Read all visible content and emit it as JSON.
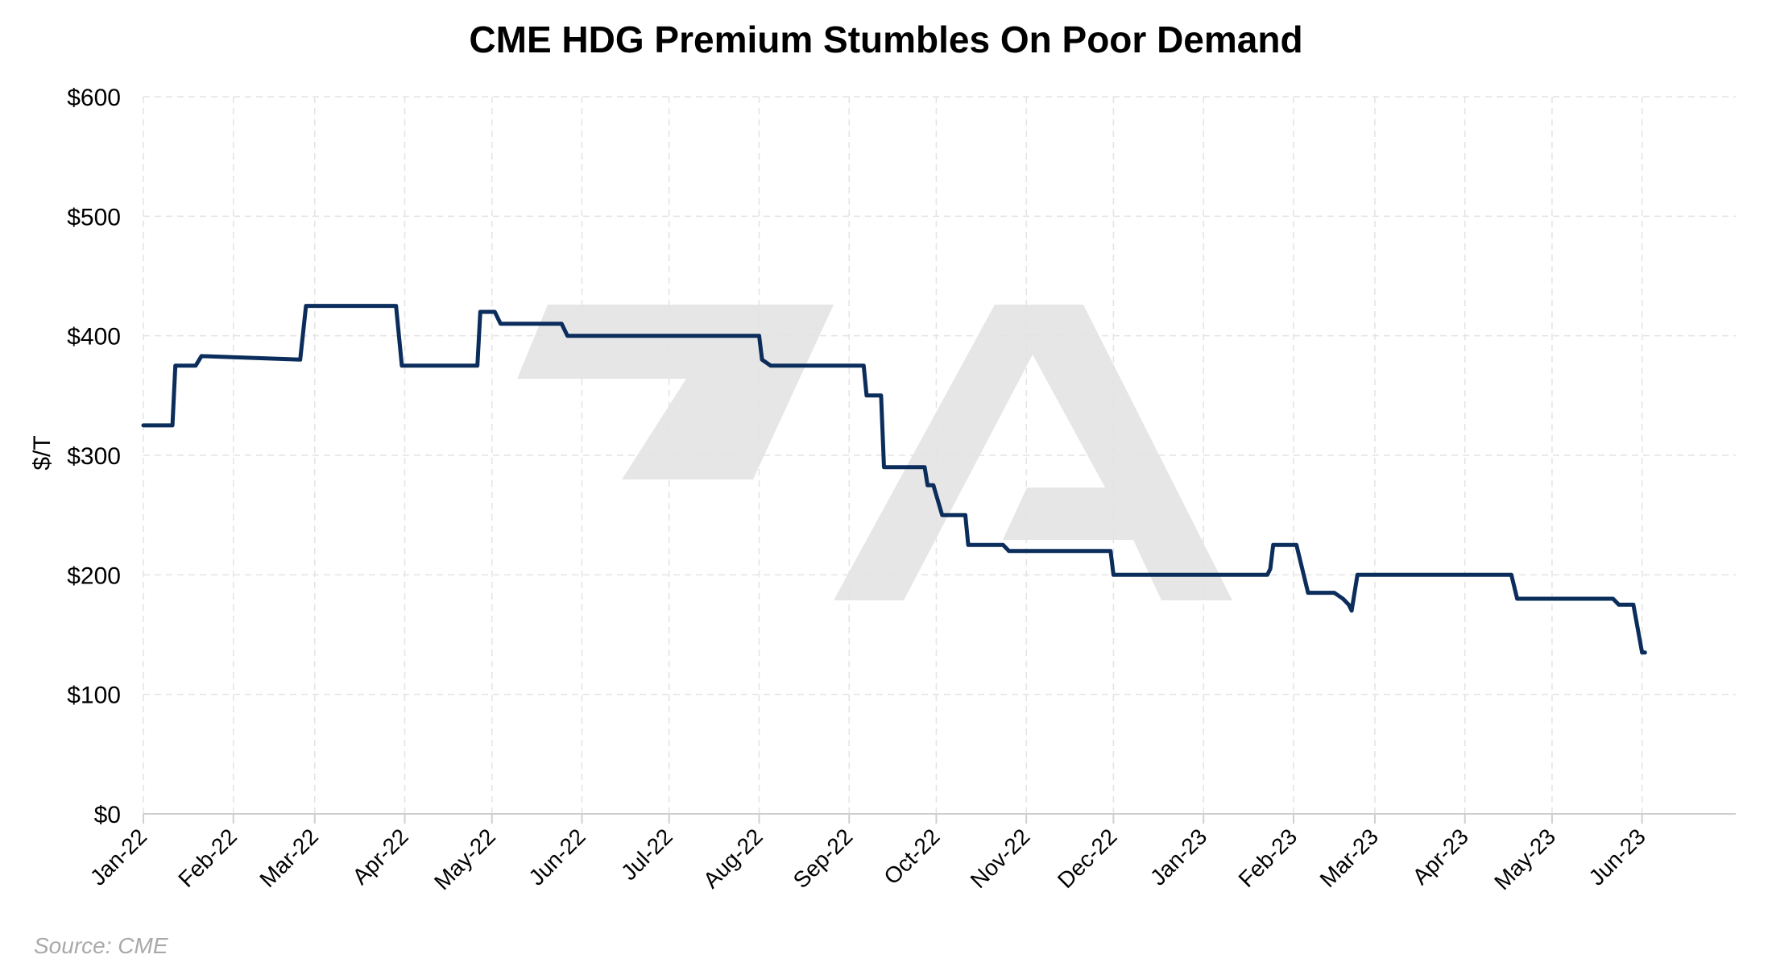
{
  "chart_data": {
    "type": "line",
    "title": "CME HDG Premium Stumbles On Poor Demand",
    "xlabel": "",
    "ylabel": "$/T",
    "ylim": [
      0,
      600
    ],
    "y_ticks": [
      0,
      100,
      200,
      300,
      400,
      500,
      600
    ],
    "y_tick_labels": [
      "$0",
      "$100",
      "$200",
      "$300",
      "$400",
      "$500",
      "$600"
    ],
    "x_range": [
      "2022-01-01",
      "2023-06-18"
    ],
    "x_ticks": [
      "2022-01-01",
      "2022-02-01",
      "2022-03-01",
      "2022-04-01",
      "2022-05-01",
      "2022-06-01",
      "2022-07-01",
      "2022-08-01",
      "2022-09-01",
      "2022-10-01",
      "2022-11-01",
      "2022-12-01",
      "2023-01-01",
      "2023-02-01",
      "2023-03-01",
      "2023-04-01",
      "2023-05-01",
      "2023-06-01"
    ],
    "x_tick_labels": [
      "Jan-22",
      "Feb-22",
      "Mar-22",
      "Apr-22",
      "May-22",
      "Jun-22",
      "Jul-22",
      "Aug-22",
      "Sep-22",
      "Oct-22",
      "Nov-22",
      "Dec-22",
      "Jan-23",
      "Feb-23",
      "Mar-23",
      "Apr-23",
      "May-23",
      "Jun-23"
    ],
    "grid": true,
    "legend": "none",
    "line_color": "#0b2d5b",
    "series": [
      {
        "x": [
          "2022-01-01",
          "2022-01-11",
          "2022-01-12",
          "2022-01-19",
          "2022-01-21",
          "2022-02-24",
          "2022-02-26",
          "2022-03-29",
          "2022-03-31",
          "2022-04-26",
          "2022-04-27",
          "2022-05-02",
          "2022-05-04",
          "2022-05-25",
          "2022-05-27",
          "2022-08-01",
          "2022-08-02",
          "2022-08-05",
          "2022-09-06",
          "2022-09-07",
          "2022-09-12",
          "2022-09-13",
          "2022-09-27",
          "2022-09-28",
          "2022-09-30",
          "2022-10-03",
          "2022-10-11",
          "2022-10-12",
          "2022-10-24",
          "2022-10-26",
          "2022-11-30",
          "2022-12-01",
          "2023-01-23",
          "2023-01-24",
          "2023-01-25",
          "2023-02-02",
          "2023-02-06",
          "2023-02-15",
          "2023-02-18",
          "2023-02-20",
          "2023-02-21",
          "2023-02-23",
          "2023-04-17",
          "2023-04-19",
          "2023-05-22",
          "2023-05-24",
          "2023-05-29",
          "2023-06-01",
          "2023-06-02"
        ],
        "y": [
          325,
          325,
          375,
          375,
          383,
          380,
          425,
          425,
          375,
          375,
          420,
          420,
          410,
          410,
          400,
          400,
          380,
          375,
          375,
          350,
          350,
          290,
          290,
          275,
          275,
          250,
          250,
          225,
          225,
          220,
          220,
          200,
          200,
          205,
          225,
          225,
          185,
          185,
          180,
          175,
          170,
          200,
          200,
          180,
          180,
          175,
          175,
          135,
          135
        ]
      }
    ]
  },
  "source": "Source: CME",
  "watermark_colour": "#e6e6e6"
}
